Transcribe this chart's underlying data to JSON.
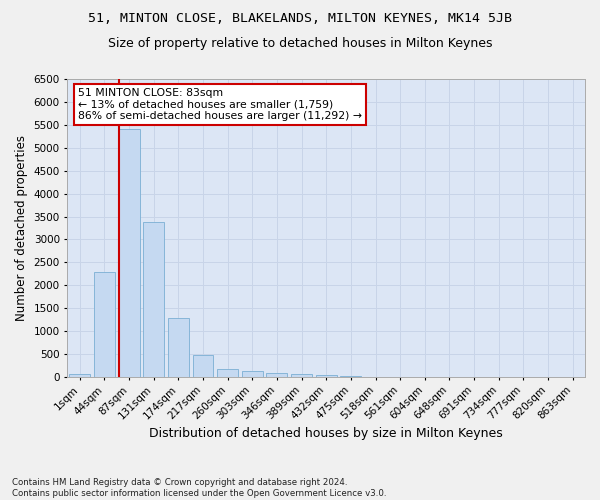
{
  "title1": "51, MINTON CLOSE, BLAKELANDS, MILTON KEYNES, MK14 5JB",
  "title2": "Size of property relative to detached houses in Milton Keynes",
  "xlabel": "Distribution of detached houses by size in Milton Keynes",
  "ylabel": "Number of detached properties",
  "footnote": "Contains HM Land Registry data © Crown copyright and database right 2024.\nContains public sector information licensed under the Open Government Licence v3.0.",
  "categories": [
    "1sqm",
    "44sqm",
    "87sqm",
    "131sqm",
    "174sqm",
    "217sqm",
    "260sqm",
    "303sqm",
    "346sqm",
    "389sqm",
    "432sqm",
    "475sqm",
    "518sqm",
    "561sqm",
    "604sqm",
    "648sqm",
    "691sqm",
    "734sqm",
    "777sqm",
    "820sqm",
    "863sqm"
  ],
  "values": [
    75,
    2280,
    5420,
    3380,
    1290,
    480,
    175,
    120,
    85,
    55,
    35,
    10,
    5,
    2,
    1,
    0,
    0,
    0,
    0,
    0,
    0
  ],
  "bar_color": "#c5d9f1",
  "bar_edgecolor": "#7bafd4",
  "property_line_color": "#cc0000",
  "property_line_x": 1.575,
  "annotation_text": "51 MINTON CLOSE: 83sqm\n← 13% of detached houses are smaller (1,759)\n86% of semi-detached houses are larger (11,292) →",
  "annotation_box_facecolor": "#ffffff",
  "annotation_box_edgecolor": "#cc0000",
  "ylim": [
    0,
    6500
  ],
  "yticks": [
    0,
    500,
    1000,
    1500,
    2000,
    2500,
    3000,
    3500,
    4000,
    4500,
    5000,
    5500,
    6000,
    6500
  ],
  "grid_color": "#c8d4e8",
  "plot_bg_color": "#dce6f5",
  "fig_bg_color": "#f0f0f0",
  "title1_fontsize": 9.5,
  "title2_fontsize": 9,
  "xlabel_fontsize": 9,
  "ylabel_fontsize": 8.5,
  "tick_fontsize": 7.5,
  "footnote_fontsize": 6.2,
  "annotation_fontsize": 7.8
}
